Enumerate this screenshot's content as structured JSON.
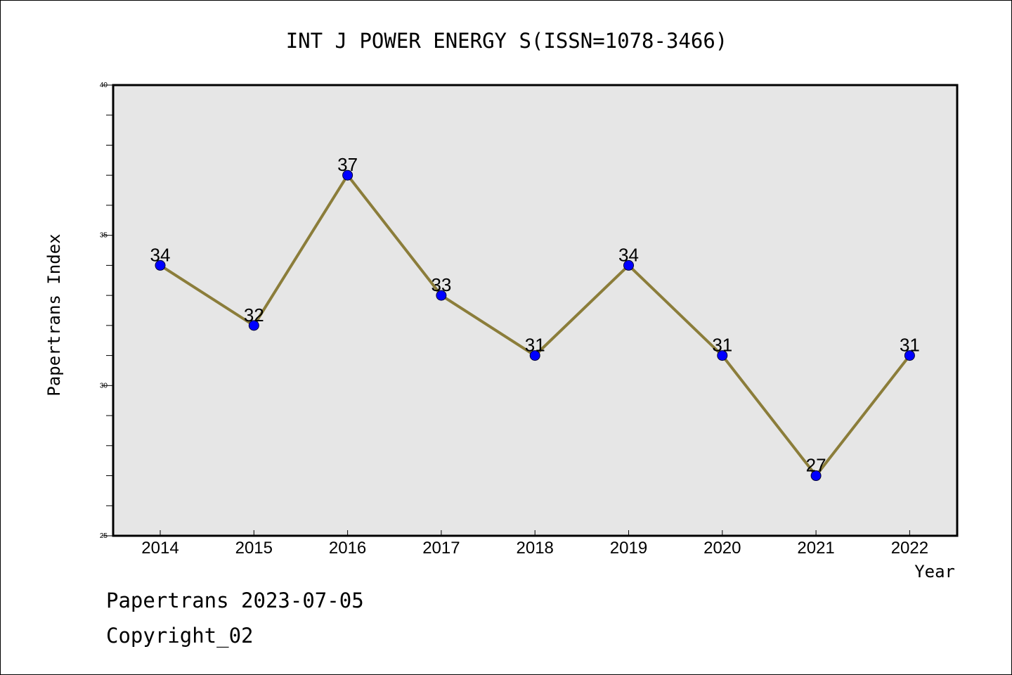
{
  "chart_data": {
    "type": "line",
    "title": "INT J POWER ENERGY S(ISSN=1078-3466)",
    "xlabel": "Year",
    "ylabel": "Papertrans Index",
    "categories": [
      "2014",
      "2015",
      "2016",
      "2017",
      "2018",
      "2019",
      "2020",
      "2021",
      "2022"
    ],
    "values": [
      34,
      32,
      37,
      33,
      31,
      34,
      31,
      27,
      31
    ],
    "ylim": [
      25,
      40
    ],
    "yticks": [
      "25",
      "30",
      "35",
      "40"
    ],
    "grid": false,
    "legend": "none",
    "colors": {
      "line": "#8b7d3a",
      "marker": "#0000ff",
      "plot_bg": "#e6e6e6"
    }
  },
  "footer": {
    "line1": "Papertrans 2023-07-05",
    "line2": "Copyright_02"
  }
}
